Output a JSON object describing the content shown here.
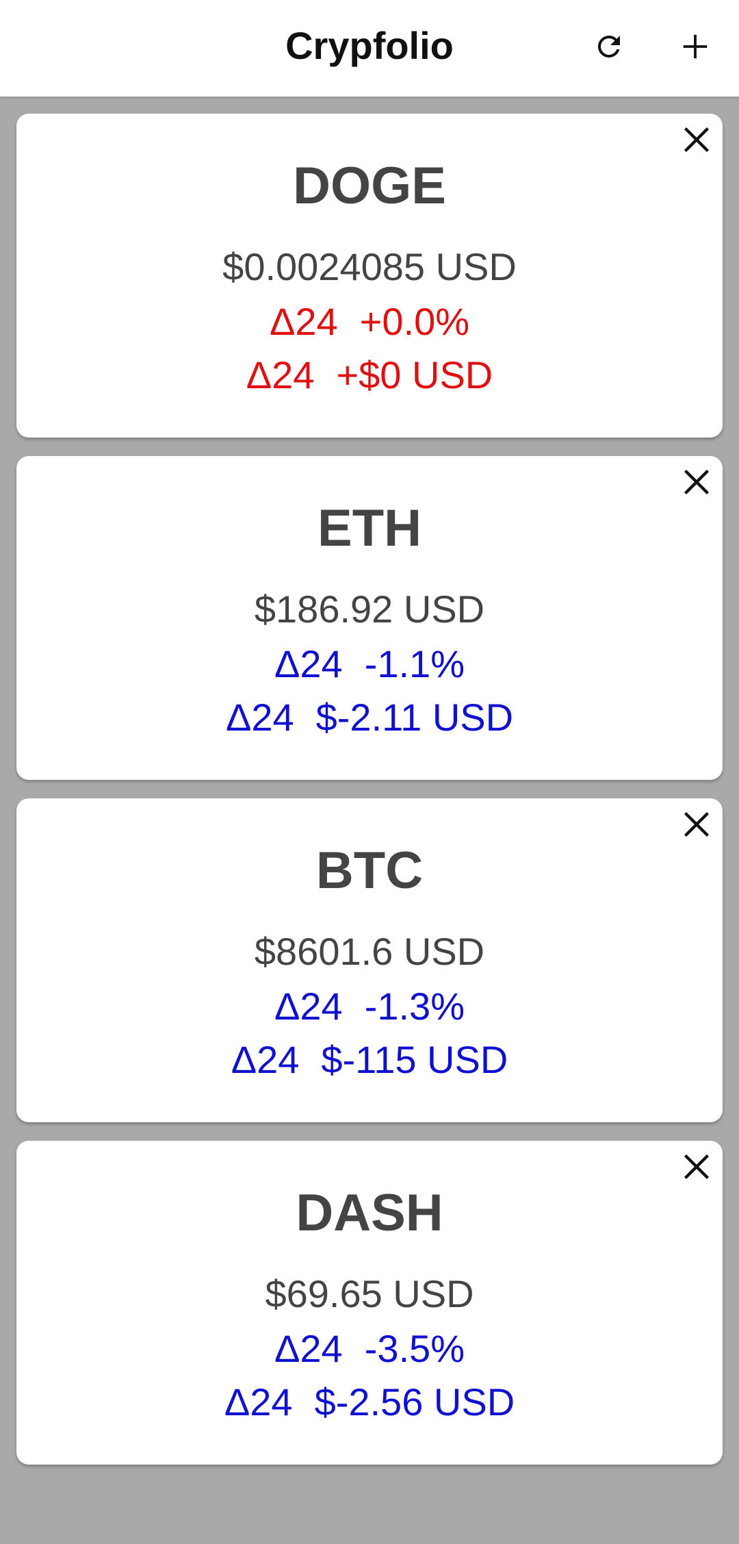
{
  "app_bar": {
    "title": "Crypfolio",
    "refresh_icon": "refresh-icon",
    "add_icon": "plus-icon"
  },
  "colors": {
    "positive": "#e01010",
    "negative": "#1010d0",
    "text": "#444444",
    "background": "#a9a9a9"
  },
  "coins": [
    {
      "symbol": "DOGE",
      "price": "$0.0024085 USD",
      "delta_label": "Δ24",
      "delta_pct": "+0.0%",
      "delta_usd": "+$0 USD",
      "trend": "positive"
    },
    {
      "symbol": "ETH",
      "price": "$186.92 USD",
      "delta_label": "Δ24",
      "delta_pct": "-1.1%",
      "delta_usd": "$-2.11 USD",
      "trend": "negative"
    },
    {
      "symbol": "BTC",
      "price": "$8601.6 USD",
      "delta_label": "Δ24",
      "delta_pct": "-1.3%",
      "delta_usd": "$-115 USD",
      "trend": "negative"
    },
    {
      "symbol": "DASH",
      "price": "$69.65 USD",
      "delta_label": "Δ24",
      "delta_pct": "-3.5%",
      "delta_usd": "$-2.56 USD",
      "trend": "negative"
    }
  ]
}
